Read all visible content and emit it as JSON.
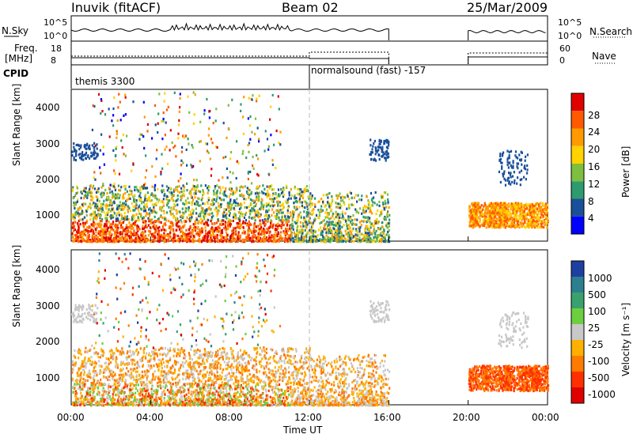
{
  "header": {
    "station": "Inuvik (fitACF)",
    "beam": "Beam 02",
    "date": "25/Mar/2009"
  },
  "top_panels": {
    "nsky_label": "N.Sky",
    "nsky_ticks": [
      "10^5",
      "10^0"
    ],
    "nsearch_label": "N.Search",
    "freq_label": "Freq.",
    "freq_unit": "[MHz]",
    "freq_ticks": [
      "18",
      "8"
    ],
    "nave_label": "Nave",
    "nave_ticks": [
      "60",
      "0"
    ],
    "cpid_label": "CPID",
    "cpid_segments": [
      "themis 3300",
      "normalsound (fast) -157"
    ]
  },
  "axes": {
    "ylabel": "Slant Range [km]",
    "yticks": [
      "4000",
      "3000",
      "2000",
      "1000"
    ],
    "xticks": [
      "00:00",
      "04:00",
      "08:00",
      "12:00",
      "16:00",
      "20:00",
      "00:00"
    ],
    "xlabel": "Time UT"
  },
  "colorbars": {
    "power": {
      "label": "Power [dB]",
      "ticks": [
        "28",
        "24",
        "20",
        "16",
        "12",
        "8",
        "4"
      ],
      "colors": [
        "#e00000",
        "#ff5a00",
        "#ff9a00",
        "#ffd200",
        "#7fbf3f",
        "#2e9a6e",
        "#1a4f9a",
        "#0000ff"
      ]
    },
    "velocity": {
      "label": "Velocity [m s⁻¹]",
      "ticks": [
        "1000",
        "500",
        "100",
        "25",
        "-25",
        "-100",
        "-500",
        "-1000"
      ],
      "colors": [
        "#1f3fa0",
        "#2c7f8f",
        "#3aa06e",
        "#6ccf3f",
        "#c8c8c8",
        "#ffb000",
        "#ff7a00",
        "#ff3000",
        "#e00000"
      ]
    }
  },
  "chart_data": [
    {
      "type": "heatmap",
      "title": "Power",
      "xlabel": "Time UT",
      "ylabel": "Slant Range [km]",
      "xlim": [
        "00:00",
        "24:00"
      ],
      "ylim": [
        180,
        4500
      ],
      "colorbar": {
        "label": "Power [dB]",
        "range": [
          0,
          30
        ]
      },
      "coverage": [
        {
          "time": [
            "00:00",
            "12:00"
          ],
          "range_km": [
            200,
            1800
          ],
          "typical_dB": 20
        },
        {
          "time": [
            "12:00",
            "16:00"
          ],
          "range_km": [
            200,
            1600
          ],
          "typical_dB": 12
        },
        {
          "time": [
            "20:00",
            "24:00"
          ],
          "range_km": [
            600,
            1300
          ],
          "typical_dB": 20
        },
        {
          "time": [
            "21:30",
            "23:00"
          ],
          "range_km": [
            1800,
            2800
          ],
          "typical_dB": 8
        }
      ]
    },
    {
      "type": "heatmap",
      "title": "Velocity",
      "xlabel": "Time UT",
      "ylabel": "Slant Range [km]",
      "xlim": [
        "00:00",
        "24:00"
      ],
      "ylim": [
        180,
        4500
      ],
      "colorbar": {
        "label": "Velocity [m s⁻¹]",
        "range": [
          -1000,
          1000
        ]
      },
      "coverage": [
        {
          "time": [
            "00:00",
            "12:00"
          ],
          "range_km": [
            200,
            1800
          ],
          "typical_ms": -100
        },
        {
          "time": [
            "12:00",
            "16:00"
          ],
          "range_km": [
            200,
            1600
          ],
          "typical_ms": -100
        },
        {
          "time": [
            "20:00",
            "24:00"
          ],
          "range_km": [
            600,
            1300
          ],
          "typical_ms": -500
        }
      ]
    }
  ]
}
